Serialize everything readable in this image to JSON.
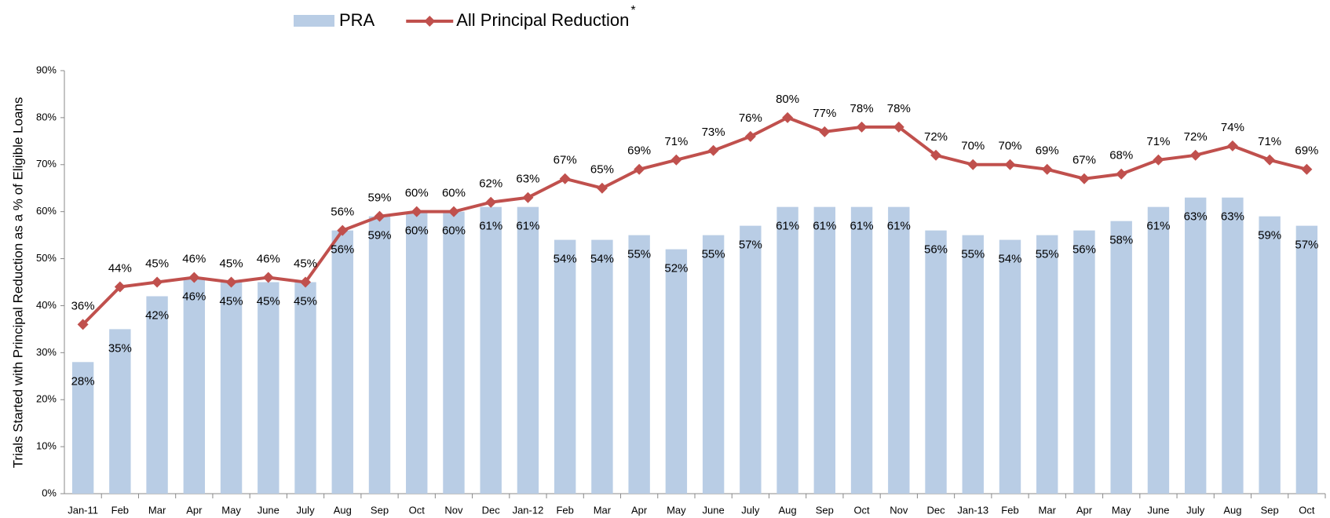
{
  "chart_data": {
    "type": "bar_line",
    "y_axis_label": "Trials Started with Principal Reduction as a % of Eligible Loans",
    "categories": [
      "Jan-11",
      "Feb",
      "Mar",
      "Apr",
      "May",
      "June",
      "July",
      "Aug",
      "Sep",
      "Oct",
      "Nov",
      "Dec",
      "Jan-12",
      "Feb",
      "Mar",
      "Apr",
      "May",
      "June",
      "July",
      "Aug",
      "Sep",
      "Oct",
      "Nov",
      "Dec",
      "Jan-13",
      "Feb",
      "Mar",
      "Apr",
      "May",
      "June",
      "July",
      "Aug",
      "Sep",
      "Oct"
    ],
    "series": [
      {
        "name": "PRA",
        "kind": "bar",
        "color": "#b9cde5",
        "values": [
          28,
          35,
          42,
          46,
          45,
          45,
          45,
          56,
          59,
          60,
          60,
          61,
          61,
          54,
          54,
          55,
          52,
          55,
          57,
          61,
          61,
          61,
          61,
          56,
          55,
          54,
          55,
          56,
          58,
          61,
          63,
          63,
          59,
          57
        ],
        "value_labels": [
          "28%",
          "35%",
          "42%",
          "46%",
          "45%",
          "45%",
          "45%",
          "56%",
          "59%",
          "60%",
          "60%",
          "61%",
          "61%",
          "54%",
          "54%",
          "55%",
          "52%",
          "55%",
          "57%",
          "61%",
          "61%",
          "61%",
          "61%",
          "56%",
          "55%",
          "54%",
          "55%",
          "56%",
          "58%",
          "61%",
          "63%",
          "63%",
          "59%",
          "57%"
        ]
      },
      {
        "name": "All Principal Reduction",
        "name_marker": "*",
        "kind": "line",
        "color": "#c0504d",
        "values": [
          36,
          44,
          45,
          46,
          45,
          46,
          45,
          56,
          59,
          60,
          60,
          62,
          63,
          67,
          65,
          69,
          71,
          73,
          76,
          80,
          77,
          78,
          78,
          72,
          70,
          70,
          69,
          67,
          68,
          71,
          72,
          74,
          71,
          69
        ],
        "value_labels": [
          "36%",
          "44%",
          "45%",
          "46%",
          "45%",
          "46%",
          "45%",
          "56%",
          "59%",
          "60%",
          "60%",
          "62%",
          "63%",
          "67%",
          "65%",
          "69%",
          "71%",
          "73%",
          "76%",
          "80%",
          "77%",
          "78%",
          "78%",
          "72%",
          "70%",
          "70%",
          "69%",
          "67%",
          "68%",
          "71%",
          "72%",
          "74%",
          "71%",
          "69%"
        ]
      }
    ],
    "ylim": [
      0,
      90
    ],
    "yticks": [
      {
        "value": 0,
        "label": "0%"
      },
      {
        "value": 10,
        "label": "10%"
      },
      {
        "value": 20,
        "label": "20%"
      },
      {
        "value": 30,
        "label": "30%"
      },
      {
        "value": 40,
        "label": "40%"
      },
      {
        "value": 50,
        "label": "50%"
      },
      {
        "value": 60,
        "label": "60%"
      },
      {
        "value": 70,
        "label": "70%"
      },
      {
        "value": 80,
        "label": "80%"
      },
      {
        "value": 90,
        "label": "90%"
      }
    ],
    "grid": false,
    "legend": "top"
  }
}
